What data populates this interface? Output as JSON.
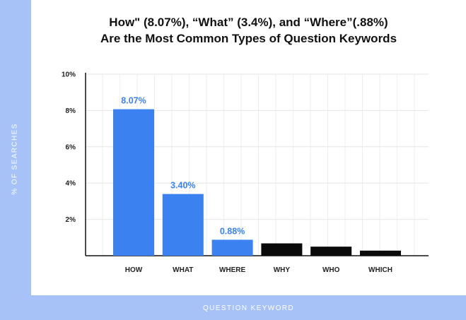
{
  "chart_data": {
    "type": "bar",
    "title_line1": "How\" (8.07%), “What” (3.4%), and “Where”(.88%)",
    "title_line2": "Are the Most Common Types of Question Keywords",
    "xlabel": "QUESTION KEYWORD",
    "ylabel": "% OF SEARCHES",
    "categories": [
      "HOW",
      "WHAT",
      "WHERE",
      "WHY",
      "WHO",
      "WHICH"
    ],
    "values": [
      8.07,
      3.4,
      0.88,
      0.68,
      0.5,
      0.28
    ],
    "data_labels": [
      "8.07%",
      "3.40%",
      "0.88%",
      "",
      "",
      ""
    ],
    "bar_colors": [
      "#3b82f0",
      "#3b82f0",
      "#3b82f0",
      "#0a0a0a",
      "#0a0a0a",
      "#0a0a0a"
    ],
    "label_color": "#3b82f0",
    "ylim": [
      0,
      10
    ],
    "yticks": [
      2,
      4,
      6,
      8,
      10
    ],
    "ytick_labels": [
      "2%",
      "4%",
      "6%",
      "8%",
      "10%"
    ],
    "grid": true
  }
}
